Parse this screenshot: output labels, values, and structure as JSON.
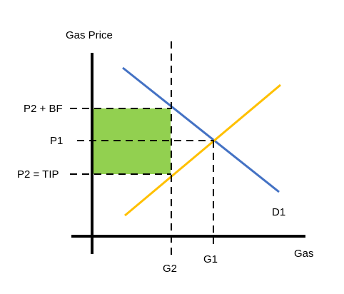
{
  "y_axis_label": "Gas Price",
  "x_axis_label": "Gas",
  "price_labels": {
    "p2_plus_bf": "P2 + BF",
    "p1": "P1",
    "p2_tip": "P2 = TIP"
  },
  "quantity_labels": {
    "g1": "G1",
    "g2": "G2"
  },
  "curve_labels": {
    "demand": "D1"
  },
  "colors": {
    "axis": "#000000",
    "demand": "#4472C4",
    "supply": "#FFC000",
    "shaded_area": "#92D050",
    "dashed": "#000000"
  }
}
